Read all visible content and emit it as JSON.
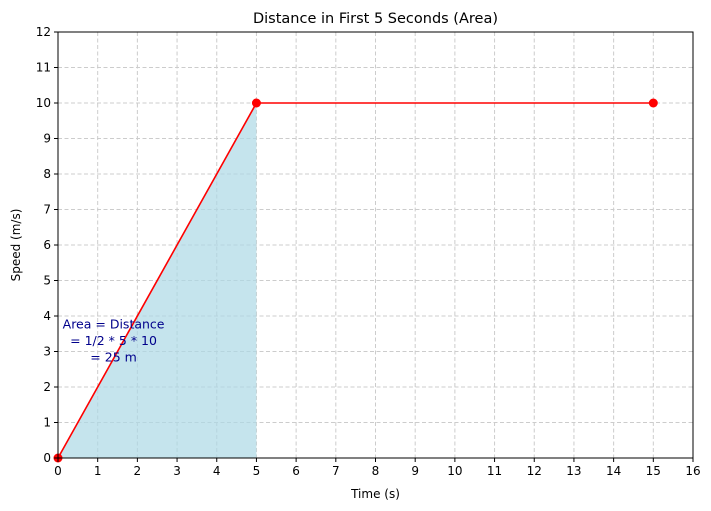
{
  "chart_data": {
    "type": "line",
    "title": "Distance in First 5 Seconds (Area)",
    "xlabel": "Time (s)",
    "ylabel": "Speed (m/s)",
    "xlim": [
      0,
      16
    ],
    "ylim": [
      0,
      12
    ],
    "xticks": [
      0,
      1,
      2,
      3,
      4,
      5,
      6,
      7,
      8,
      9,
      10,
      11,
      12,
      13,
      14,
      15,
      16
    ],
    "yticks": [
      0,
      1,
      2,
      3,
      4,
      5,
      6,
      7,
      8,
      9,
      10,
      11,
      12
    ],
    "grid": true,
    "series": [
      {
        "x": [
          0,
          5,
          15
        ],
        "y": [
          0,
          10,
          10
        ],
        "color": "#ff0000",
        "marker": "circle"
      }
    ],
    "shaded_area": {
      "x": [
        0,
        5
      ],
      "y": [
        0,
        10
      ],
      "color": "#add8e6"
    },
    "annotation": {
      "lines": [
        "Area = Distance",
        "= 1/2 * 5 * 10",
        "= 25 m"
      ],
      "x": 1.4,
      "y": 3.3,
      "color": "#00008b"
    }
  }
}
